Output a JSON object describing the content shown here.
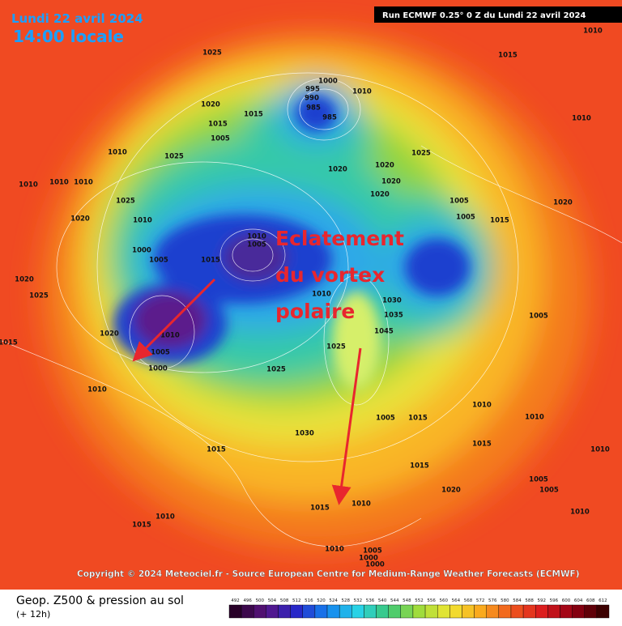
{
  "header": {
    "date": "Lundi 22 avril 2024",
    "time": "14:00 locale",
    "run": "Run ECMWF 0.25° 0 Z du Lundi 22 avril 2024"
  },
  "annotation": {
    "lines": [
      "Eclatement",
      "du vortex",
      "polaire"
    ]
  },
  "isobar_labels": [
    1010,
    1015,
    1025,
    1000,
    995,
    990,
    985,
    985,
    1010,
    1020,
    1015,
    1015,
    1005,
    1010,
    1025,
    1025,
    1020,
    1020,
    1020,
    1020,
    1010,
    1010,
    1010,
    1025,
    1020,
    1010,
    1005,
    1005,
    1015,
    1000,
    1005,
    1015,
    1010,
    1005,
    1020,
    1025,
    1020,
    1015,
    1010,
    1005,
    1000,
    1010,
    1010,
    1030,
    1035,
    1045,
    1025,
    1025,
    1015,
    1030,
    1005,
    1015,
    1010,
    1015,
    1015,
    1005,
    1020,
    1010,
    1010,
    1005,
    1005,
    1020,
    1015,
    1010,
    1010,
    1015,
    1010,
    1005,
    1000,
    1000,
    1010,
    1010
  ],
  "copyright": "Copyright © 2024 Meteociel.fr - Source European Centre for Medium-Range Weather Forecasts (ECMWF)",
  "footer": {
    "title": "Geop. Z500 & pression au sol",
    "lead": "(+ 12h)"
  },
  "colorbar": {
    "ticks": [
      492,
      496,
      500,
      504,
      508,
      512,
      516,
      520,
      524,
      528,
      532,
      536,
      540,
      544,
      548,
      552,
      556,
      560,
      564,
      568,
      572,
      576,
      580,
      584,
      588,
      592,
      596,
      600,
      604,
      608,
      612
    ]
  }
}
